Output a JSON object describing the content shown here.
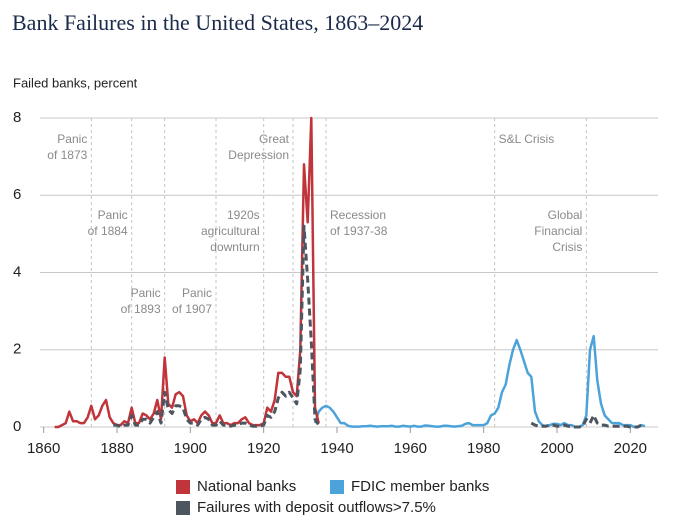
{
  "chart_data": {
    "type": "line",
    "title": "Bank Failures in the United States, 1863–2024",
    "y_label": "Failed banks, percent",
    "xlim": [
      1859,
      2027
    ],
    "xticks": [
      1860,
      1880,
      1900,
      1920,
      1940,
      1960,
      1980,
      2000,
      2020
    ],
    "ylim": [
      0,
      8
    ],
    "yticks": [
      0,
      2,
      4,
      6,
      8
    ],
    "grid": true,
    "annotations": [
      {
        "lines": [
          "Panic",
          "of 1873"
        ],
        "x": 1873
      },
      {
        "lines": [
          "Panic",
          "of 1884"
        ],
        "x": 1884
      },
      {
        "lines": [
          "Panic",
          "of 1893"
        ],
        "x": 1893
      },
      {
        "lines": [
          "Panic",
          "of 1907"
        ],
        "x": 1907
      },
      {
        "lines": [
          "1920s",
          "agricultural",
          "downturn"
        ],
        "x": 1920
      },
      {
        "lines": [
          "Great",
          "Depression"
        ],
        "x": 1928
      },
      {
        "lines": [
          "Recession",
          "of 1937-38"
        ],
        "x": 1937
      },
      {
        "lines": [
          "S&L Crisis"
        ],
        "x": 1983
      },
      {
        "lines": [
          "Global",
          "Financial",
          "Crisis"
        ],
        "x": 2008
      }
    ],
    "series": [
      {
        "name": "National banks",
        "color": "#c0343a",
        "dashed": false,
        "x": [
          1863,
          1864,
          1865,
          1866,
          1867,
          1868,
          1869,
          1870,
          1871,
          1872,
          1873,
          1874,
          1875,
          1876,
          1877,
          1878,
          1879,
          1880,
          1881,
          1882,
          1883,
          1884,
          1885,
          1886,
          1887,
          1888,
          1889,
          1890,
          1891,
          1892,
          1893,
          1894,
          1895,
          1896,
          1897,
          1898,
          1899,
          1900,
          1901,
          1902,
          1903,
          1904,
          1905,
          1906,
          1907,
          1908,
          1909,
          1910,
          1911,
          1912,
          1913,
          1914,
          1915,
          1916,
          1917,
          1918,
          1919,
          1920,
          1921,
          1922,
          1923,
          1924,
          1925,
          1926,
          1927,
          1928,
          1929,
          1930,
          1931,
          1932,
          1933,
          1934,
          1935
        ],
        "values": [
          0,
          0,
          0.05,
          0.1,
          0.4,
          0.15,
          0.15,
          0.1,
          0.1,
          0.25,
          0.55,
          0.2,
          0.3,
          0.55,
          0.7,
          0.25,
          0.1,
          0.05,
          0.05,
          0.15,
          0.1,
          0.5,
          0.1,
          0.1,
          0.35,
          0.3,
          0.2,
          0.35,
          0.7,
          0.2,
          1.8,
          0.6,
          0.5,
          0.85,
          0.9,
          0.8,
          0.3,
          0.15,
          0.2,
          0.1,
          0.3,
          0.4,
          0.3,
          0.1,
          0.1,
          0.3,
          0.1,
          0.1,
          0.05,
          0.1,
          0.1,
          0.2,
          0.25,
          0.1,
          0.05,
          0.05,
          0.05,
          0.1,
          0.5,
          0.4,
          0.7,
          1.4,
          1.4,
          1.3,
          1.3,
          0.9,
          0.8,
          2.0,
          6.8,
          5.3,
          8.0,
          0.5,
          0.1
        ]
      },
      {
        "name": "FDIC member banks",
        "color": "#4ba3d9",
        "dashed": false,
        "x": [
          1934,
          1935,
          1936,
          1937,
          1938,
          1939,
          1940,
          1941,
          1942,
          1943,
          1944,
          1945,
          1946,
          1947,
          1948,
          1949,
          1950,
          1951,
          1952,
          1953,
          1954,
          1955,
          1956,
          1957,
          1958,
          1959,
          1960,
          1961,
          1962,
          1963,
          1964,
          1965,
          1966,
          1967,
          1968,
          1969,
          1970,
          1971,
          1972,
          1973,
          1974,
          1975,
          1976,
          1977,
          1978,
          1979,
          1980,
          1981,
          1982,
          1983,
          1984,
          1985,
          1986,
          1987,
          1988,
          1989,
          1990,
          1991,
          1992,
          1993,
          1994,
          1995,
          1996,
          1997,
          1998,
          1999,
          2000,
          2001,
          2002,
          2003,
          2004,
          2005,
          2006,
          2007,
          2008,
          2009,
          2010,
          2011,
          2012,
          2013,
          2014,
          2015,
          2016,
          2017,
          2018,
          2019,
          2020,
          2021,
          2022,
          2023,
          2024
        ],
        "values": [
          0.1,
          0.4,
          0.5,
          0.55,
          0.5,
          0.4,
          0.25,
          0.1,
          0.1,
          0.03,
          0.01,
          0.01,
          0.01,
          0.02,
          0.02,
          0.03,
          0.02,
          0.01,
          0.02,
          0.02,
          0.02,
          0.03,
          0.01,
          0.01,
          0.03,
          0.02,
          0.01,
          0.03,
          0.01,
          0.01,
          0.04,
          0.03,
          0.02,
          0.01,
          0.01,
          0.03,
          0.03,
          0.02,
          0.01,
          0.02,
          0.03,
          0.08,
          0.1,
          0.05,
          0.05,
          0.05,
          0.05,
          0.1,
          0.3,
          0.35,
          0.5,
          0.9,
          1.1,
          1.6,
          2.0,
          2.25,
          2.0,
          1.7,
          1.4,
          1.3,
          0.4,
          0.15,
          0.05,
          0.02,
          0.05,
          0.08,
          0.08,
          0.05,
          0.1,
          0.05,
          0.05,
          0,
          0,
          0.05,
          0.3,
          2.0,
          2.35,
          1.2,
          0.6,
          0.3,
          0.2,
          0.1,
          0.1,
          0.1,
          0.05,
          0.05,
          0.05,
          0,
          0,
          0.05,
          0.02
        ]
      },
      {
        "name": "Failures with deposit outflows>7.5%",
        "color": "#4d5560",
        "dashed": true,
        "x": [
          1879,
          1880,
          1881,
          1882,
          1883,
          1884,
          1885,
          1886,
          1887,
          1888,
          1889,
          1890,
          1891,
          1892,
          1893,
          1894,
          1895,
          1896,
          1897,
          1898,
          1899,
          1900,
          1901,
          1902,
          1903,
          1904,
          1905,
          1906,
          1907,
          1908,
          1909,
          1910,
          1911,
          1912,
          1913,
          1914,
          1915,
          1916,
          1917,
          1918,
          1919,
          1920,
          1921,
          1922,
          1923,
          1924,
          1925,
          1926,
          1927,
          1928,
          1929,
          1930,
          1931,
          1932,
          1933,
          1934,
          1935,
          1936,
          1993,
          1994,
          1995,
          1996,
          1997,
          1998,
          1999,
          2000,
          2001,
          2002,
          2003,
          2004,
          2005,
          2006,
          2007,
          2008,
          2009,
          2010,
          2011,
          2012,
          2013,
          2014,
          2015,
          2016,
          2017,
          2018,
          2019,
          2020,
          2021,
          2022,
          2023
        ],
        "values": [
          0.05,
          0.05,
          0,
          0.05,
          0.05,
          0.3,
          0.05,
          0.05,
          0.2,
          0.2,
          0.1,
          0.25,
          0.4,
          0.1,
          0.9,
          0.45,
          0.35,
          0.55,
          0.55,
          0.5,
          0.2,
          0.1,
          0.1,
          0.05,
          0.2,
          0.25,
          0.2,
          0.05,
          0.05,
          0.15,
          0.05,
          0.05,
          0.02,
          0.05,
          0.05,
          0.1,
          0.1,
          0.05,
          0.02,
          0.02,
          0.02,
          0.05,
          0.3,
          0.25,
          0.4,
          0.75,
          0.9,
          0.8,
          0.9,
          0.75,
          0.6,
          1.5,
          5.2,
          3.8,
          2.2,
          0.2,
          0.05,
          null,
          0.1,
          0.05,
          0.02,
          0.02,
          0.02,
          0.05,
          0.05,
          0.02,
          0.02,
          0.05,
          0.02,
          0.01,
          0,
          0,
          0.02,
          0.2,
          0.1,
          0.3,
          0.1,
          0.05,
          0.05,
          0.02,
          0.02,
          0.02,
          0.02,
          0.02,
          0.02,
          0,
          0,
          0,
          0.05
        ]
      }
    ]
  }
}
